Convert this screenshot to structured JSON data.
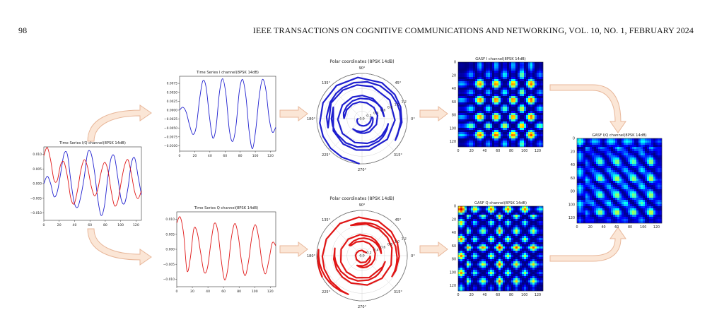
{
  "header": {
    "page_number": "98",
    "running_title": "IEEE TRANSACTIONS ON COGNITIVE COMMUNICATIONS AND NETWORKING, VOL. 10, NO. 1, FEBRUARY 2024"
  },
  "colors": {
    "i_channel": "#1f1fcf",
    "q_channel": "#e01515",
    "arrow_fill": "#fbe6d6",
    "arrow_stroke": "#e8b79a"
  },
  "chart_data": [
    {
      "id": "iq",
      "type": "line",
      "title": "Time Series I/Q channel(8PSK 14dB)",
      "x_ticks": [
        "0",
        "20",
        "40",
        "60",
        "80",
        "100",
        "120"
      ],
      "y_ticks": [
        "0.010",
        "0.005",
        "0.000",
        "−0.005",
        "−0.010"
      ],
      "xlim": [
        0,
        127
      ],
      "ylim": [
        -0.0125,
        0.0125
      ],
      "series": [
        {
          "color": "blue",
          "values": [
            0.0,
            0.0025,
            0.0001,
            -0.0044,
            -0.0028,
            0.0035,
            0.0101,
            0.0099,
            0.0011,
            -0.0063,
            -0.0081,
            -0.0043,
            0.0021,
            0.0104,
            0.0104,
            0.0045,
            -0.0049,
            -0.0108,
            -0.0076,
            0.0019,
            0.0087,
            0.0091,
            0.0019,
            -0.0054,
            -0.0067,
            -0.0015,
            0.0068,
            0.0087,
            0.0026,
            -0.0038
          ]
        },
        {
          "color": "red",
          "values": [
            0.0095,
            0.0123,
            0.0081,
            0.0013,
            0.0011,
            0.0065,
            0.0073,
            0.0025,
            -0.0049,
            -0.0069,
            -0.0023,
            0.0045,
            0.0081,
            0.0056,
            -0.0004,
            -0.0041,
            -0.0021,
            0.0037,
            0.0072,
            0.0048,
            -0.0024,
            -0.0075,
            -0.0059,
            0.0005,
            0.0062,
            0.0081,
            0.0034,
            -0.0028,
            -0.0051,
            -0.0025
          ]
        }
      ]
    },
    {
      "id": "ts_i",
      "type": "line",
      "title": "Time Series I channel(8PSK 14dB)",
      "x_ticks": [
        "0",
        "20",
        "40",
        "60",
        "80",
        "100",
        "120"
      ],
      "y_ticks": [
        "0.0075",
        "0.0050",
        "0.0025",
        "0.0000",
        "−0.0025",
        "−0.0050",
        "−0.0075",
        "−0.0100"
      ],
      "xlim": [
        0,
        127
      ],
      "ylim": [
        -0.0115,
        0.0095
      ],
      "series": [
        {
          "color": "blue",
          "values": [
            0.0,
            0.0008,
            -0.0006,
            -0.0042,
            -0.0068,
            -0.0048,
            0.0028,
            0.0082,
            0.0064,
            -0.0018,
            -0.0078,
            -0.0048,
            0.0048,
            0.0088,
            0.0042,
            -0.0055,
            -0.0088,
            -0.0045,
            0.0052,
            0.0086,
            0.0038,
            -0.0062,
            -0.0108,
            -0.0052,
            0.0038,
            0.0086,
            0.0058,
            -0.0022,
            -0.0062,
            -0.0048
          ]
        }
      ]
    },
    {
      "id": "ts_q",
      "type": "line",
      "title": "Time Series Q channel(8PSK 14dB)",
      "x_ticks": [
        "0",
        "20",
        "40",
        "60",
        "80",
        "100",
        "120"
      ],
      "y_ticks": [
        "0.010",
        "0.005",
        "0.000",
        "−0.005",
        "−0.010"
      ],
      "xlim": [
        0,
        127
      ],
      "ylim": [
        -0.0125,
        0.0125
      ],
      "series": [
        {
          "color": "red",
          "values": [
            0.0088,
            0.0108,
            0.0052,
            -0.0072,
            -0.0028,
            0.0068,
            0.0055,
            -0.0012,
            -0.0076,
            -0.0062,
            0.0022,
            0.0086,
            0.0062,
            -0.0034,
            -0.0102,
            -0.0062,
            0.0038,
            0.0086,
            0.0046,
            -0.0042,
            -0.0088,
            -0.0042,
            0.0042,
            0.0082,
            0.0038,
            -0.0046,
            -0.0082,
            -0.0036,
            0.0022,
            0.0012
          ]
        }
      ]
    },
    {
      "id": "polar_i",
      "type": "scatter",
      "title": "Polar coordinates (8PSK 14dB)",
      "angle_labels": [
        "0°",
        "45°",
        "90°",
        "135°",
        "180°",
        "225°",
        "270°",
        "315°"
      ],
      "radial_ticks": [
        "0.0",
        "0.2",
        "0.4",
        "0.6",
        "0.8",
        "1.0",
        "1.2"
      ],
      "rlim": [
        0,
        1.2
      ],
      "series": [
        {
          "color": "blue",
          "style": "spiral polyline (angle = arccos of scaled amplitude, radius = time)"
        }
      ]
    },
    {
      "id": "polar_q",
      "type": "scatter",
      "title": "Polar coordinates (8PSK 14dB)",
      "angle_labels": [
        "0°",
        "45°",
        "90°",
        "135°",
        "180°",
        "225°",
        "270°",
        "315°"
      ],
      "radial_ticks": [
        "0.0",
        "0.2",
        "0.4",
        "0.6",
        "0.8",
        "1.0",
        "1.2"
      ],
      "rlim": [
        0,
        1.2
      ],
      "series": [
        {
          "color": "red",
          "style": "spiral polyline (angle = arccos of scaled amplitude, radius = time)"
        }
      ]
    },
    {
      "id": "gasf_i",
      "type": "heatmap",
      "title": "GASF I channel(8PSK 14dB)",
      "x_ticks": [
        "0",
        "20",
        "40",
        "60",
        "80",
        "100",
        "120"
      ],
      "y_ticks": [
        "0",
        "20",
        "40",
        "60",
        "80",
        "100",
        "120"
      ],
      "size": 128,
      "colormap": "jet"
    },
    {
      "id": "gasf_q",
      "type": "heatmap",
      "title": "GASF Q channel(8PSK 14dB)",
      "x_ticks": [
        "0",
        "20",
        "40",
        "60",
        "80",
        "100",
        "120"
      ],
      "y_ticks": [
        "0",
        "20",
        "40",
        "60",
        "80",
        "100",
        "120"
      ],
      "size": 128,
      "colormap": "jet"
    },
    {
      "id": "gasf_iq",
      "type": "heatmap",
      "title": "GASF I/Q channel(8PSK 14dB)",
      "x_ticks": [
        "0",
        "20",
        "40",
        "60",
        "80",
        "100",
        "120"
      ],
      "y_ticks": [
        "0",
        "20",
        "40",
        "60",
        "80",
        "100",
        "120"
      ],
      "size": 128,
      "colormap": "jet"
    }
  ]
}
